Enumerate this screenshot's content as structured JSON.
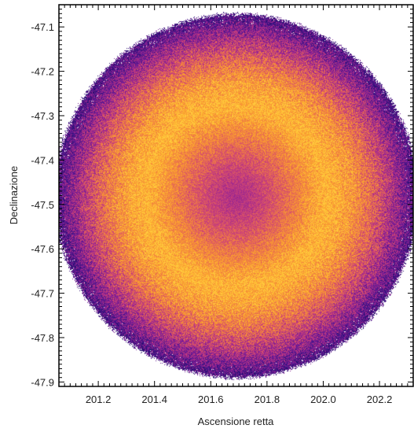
{
  "chart_data": {
    "type": "heatmap",
    "xlabel": "Ascensione retta",
    "ylabel": "Declinazione",
    "xlim": [
      201.06,
      202.32
    ],
    "ylim": [
      -47.91,
      -47.05
    ],
    "x_ticks": [
      "201.2",
      "201.4",
      "201.6",
      "201.8",
      "202.0",
      "202.2"
    ],
    "x_tick_values": [
      201.2,
      201.4,
      201.6,
      201.8,
      202.0,
      202.2
    ],
    "y_ticks": [
      "-47.1",
      "-47.2",
      "-47.3",
      "-47.4",
      "-47.5",
      "-47.6",
      "-47.7",
      "-47.8",
      "-47.9"
    ],
    "y_tick_values": [
      -47.1,
      -47.2,
      -47.3,
      -47.4,
      -47.5,
      -47.6,
      -47.7,
      -47.8,
      -47.9
    ],
    "colormap": "plasma-like (purple to orange)",
    "colors": {
      "low": "#3b1780",
      "mid": "#c4339a",
      "high": "#ffb02a",
      "background": "#ffffff"
    },
    "footprint": {
      "shape": "circle",
      "center_ra": 201.69,
      "center_dec": -47.48,
      "radius_dec": 0.41
    },
    "density_profile": {
      "center_value": 0.45,
      "ring_peak_value": 0.95,
      "ring_peak_radius_dec": 0.2,
      "edge_value": 0.12
    },
    "grid": false
  }
}
